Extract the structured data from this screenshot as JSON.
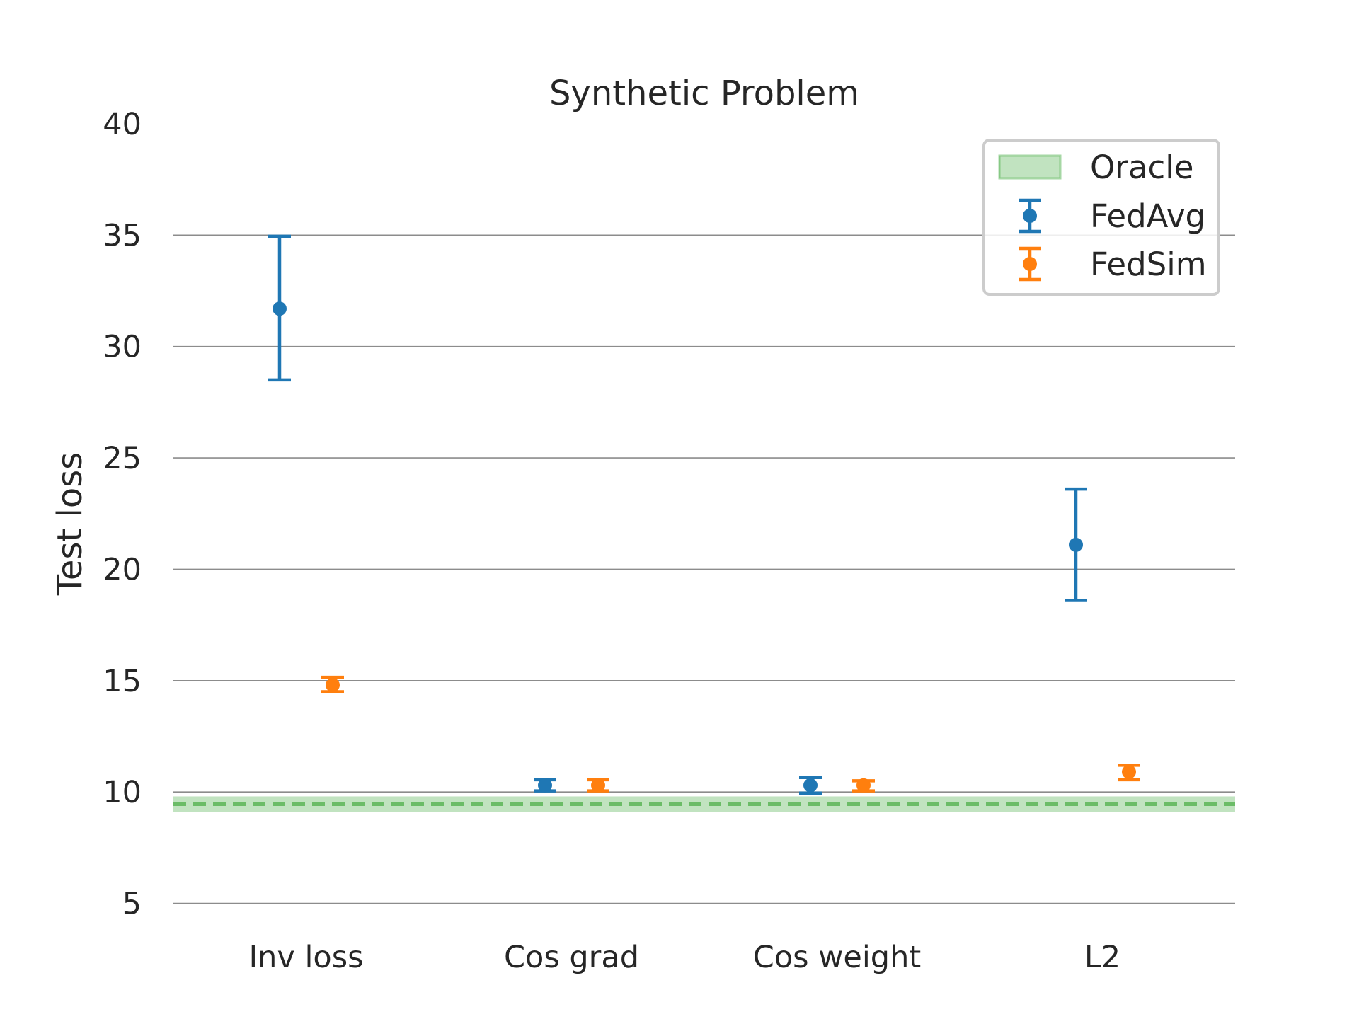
{
  "chart_data": {
    "type": "errorbar",
    "title": "Synthetic Problem",
    "xlabel": "",
    "ylabel": "Test loss",
    "ylim": [
      4,
      40
    ],
    "yticks": [
      5,
      10,
      15,
      20,
      25,
      30,
      35,
      40
    ],
    "categories": [
      "Inv loss",
      "Cos grad",
      "Cos weight",
      "L2"
    ],
    "grid": "y",
    "legend_position": "top-right",
    "oracle": {
      "name": "Oracle",
      "mean": 9.45,
      "lower": 9.1,
      "upper": 9.8,
      "color": "#4daf4a"
    },
    "series": [
      {
        "name": "FedAvg",
        "color": "#1f77b4",
        "values": [
          31.7,
          10.3,
          10.3,
          21.1
        ],
        "err_low": [
          28.5,
          10.05,
          9.95,
          18.6
        ],
        "err_high": [
          34.95,
          10.55,
          10.65,
          23.6
        ]
      },
      {
        "name": "FedSim",
        "color": "#ff7f0e",
        "values": [
          14.8,
          10.3,
          10.3,
          10.9
        ],
        "err_low": [
          14.5,
          10.05,
          10.05,
          10.55
        ],
        "err_high": [
          15.15,
          10.55,
          10.5,
          11.2
        ]
      }
    ]
  }
}
